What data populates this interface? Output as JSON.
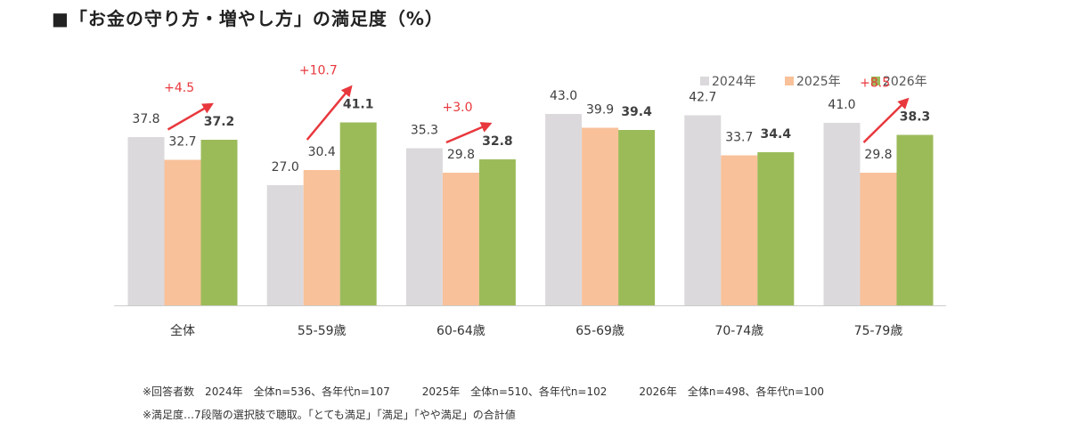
{
  "title": "■「お金の守り方・増やし方」の満足度（%）",
  "colors": {
    "accent_red": "#e8383d",
    "axis": "#cccccc"
  },
  "chart_data": {
    "type": "bar",
    "categories": [
      "全体",
      "55-59歳",
      "60-64歳",
      "65-69歳",
      "70-74歳",
      "75-79歳"
    ],
    "series": [
      {
        "name": "2024年",
        "color": "#dcd9dc",
        "bold": false,
        "values": [
          37.8,
          27.0,
          35.3,
          43.0,
          42.7,
          41.0
        ],
        "labels": [
          "37.8",
          "27.0",
          "35.3",
          "43.0",
          "42.7",
          "41.0"
        ]
      },
      {
        "name": "2025年",
        "color": "#f8c199",
        "bold": false,
        "values": [
          32.7,
          30.4,
          29.8,
          39.9,
          33.7,
          29.8
        ],
        "labels": [
          "32.7",
          "30.4",
          "29.8",
          "39.9",
          "33.7",
          "29.8"
        ]
      },
      {
        "name": "2026年",
        "color": "#9bbb59",
        "bold": true,
        "values": [
          37.2,
          41.1,
          32.8,
          39.4,
          34.4,
          38.3
        ],
        "labels": [
          "37.2",
          "41.1",
          "32.8",
          "39.4",
          "34.4",
          "38.3"
        ]
      }
    ],
    "ylim": [
      0,
      50
    ],
    "legend_position": "top-right",
    "grid": false,
    "annotations": [
      {
        "category_index": 0,
        "text": "+4.5"
      },
      {
        "category_index": 1,
        "text": "+10.7"
      },
      {
        "category_index": 2,
        "text": "+3.0"
      },
      {
        "category_index": 5,
        "text": "+8.5"
      }
    ]
  },
  "notes": [
    "※回答者数　2024年　全体n=536、各年代n=107　　　2025年　全体n=510、各年代n=102　　　2026年　全体n=498、各年代n=100",
    "※満足度…7段階の選択肢で聴取。「とても満足」「満足」「やや満足」の合計値"
  ]
}
